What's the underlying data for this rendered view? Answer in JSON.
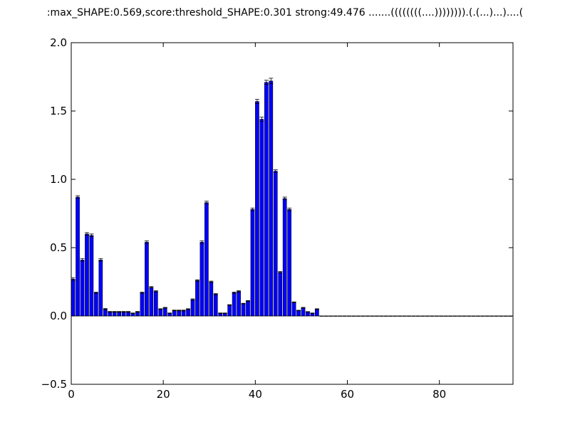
{
  "chart_data": {
    "type": "bar",
    "title": ":max_SHAPE:0.569,score:threshold_SHAPE:0.301  strong:49.476  .......((((((((....)))))))).(.(...)...)....(",
    "xlabel": "",
    "ylabel": "",
    "xlim": [
      0,
      96
    ],
    "ylim": [
      -0.5,
      2.0
    ],
    "xticks": [
      0,
      20,
      40,
      60,
      80
    ],
    "yticks": [
      -0.5,
      0.0,
      0.5,
      1.0,
      1.5,
      2.0
    ],
    "xtick_labels": [
      "0",
      "20",
      "40",
      "60",
      "80"
    ],
    "ytick_labels": [
      "−0.5",
      "0.0",
      "0.5",
      "1.0",
      "1.5",
      "2.0"
    ],
    "grid": false,
    "bar_color": "#0000ff",
    "error_bars": true,
    "values": [
      0.27,
      0.87,
      0.41,
      0.6,
      0.59,
      0.17,
      0.41,
      0.05,
      0.03,
      0.03,
      0.03,
      0.03,
      0.03,
      0.02,
      0.03,
      0.17,
      0.54,
      0.21,
      0.18,
      0.05,
      0.06,
      0.02,
      0.04,
      0.04,
      0.04,
      0.05,
      0.12,
      0.26,
      0.54,
      0.83,
      0.25,
      0.16,
      0.02,
      0.02,
      0.08,
      0.17,
      0.18,
      0.09,
      0.11,
      0.78,
      1.57,
      1.44,
      1.71,
      1.72,
      1.06,
      0.32,
      0.86,
      0.78,
      0.1,
      0.04,
      0.06,
      0.03,
      0.02,
      0.05,
      0,
      0,
      0,
      0,
      0,
      0,
      0,
      0,
      0,
      0,
      0,
      0,
      0,
      0,
      0,
      0,
      0,
      0,
      0,
      0,
      0,
      0,
      0,
      0,
      0,
      0,
      0,
      0,
      0,
      0,
      0,
      0,
      0,
      0,
      0,
      0,
      0,
      0,
      0,
      0,
      0,
      0
    ],
    "errors": [
      0.01,
      0.01,
      0.01,
      0.01,
      0.01,
      0.005,
      0.01,
      0.005,
      0.003,
      0.003,
      0.003,
      0.003,
      0.003,
      0.002,
      0.003,
      0.005,
      0.01,
      0.005,
      0.005,
      0.003,
      0.003,
      0.002,
      0.003,
      0.003,
      0.003,
      0.003,
      0.005,
      0.005,
      0.01,
      0.01,
      0.005,
      0.005,
      0.002,
      0.002,
      0.003,
      0.005,
      0.005,
      0.003,
      0.003,
      0.01,
      0.015,
      0.015,
      0.015,
      0.02,
      0.01,
      0.005,
      0.01,
      0.01,
      0.003,
      0.002,
      0.003,
      0.002,
      0.002,
      0.003,
      0,
      0,
      0,
      0,
      0,
      0,
      0,
      0,
      0,
      0,
      0,
      0,
      0,
      0,
      0,
      0,
      0,
      0,
      0,
      0,
      0,
      0,
      0,
      0,
      0,
      0,
      0,
      0,
      0,
      0,
      0,
      0,
      0,
      0,
      0,
      0,
      0,
      0,
      0,
      0,
      0,
      0
    ]
  }
}
